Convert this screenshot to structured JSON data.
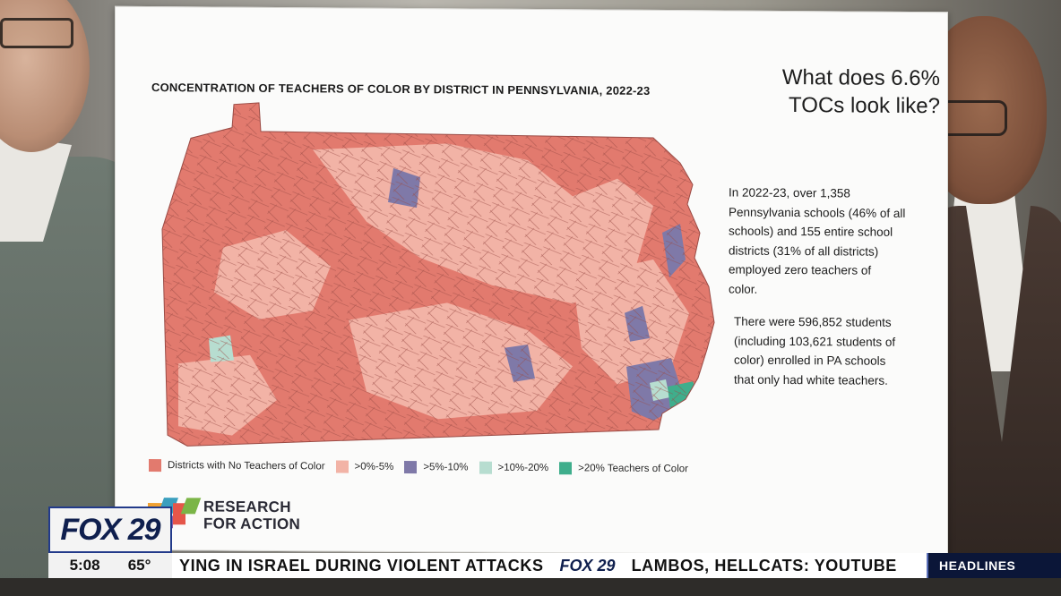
{
  "poster": {
    "map_title": "CONCENTRATION OF TEACHERS OF COLOR BY DISTRICT IN PENNSYLVANIA, 2022-23",
    "headline_line1": "What does 6.6%",
    "headline_line2": "TOCs look like?",
    "stat1_lines": [
      "In 2022-23, over 1,358",
      "Pennsylvania schools (46% of all",
      "schools) and 155 entire school",
      "districts (31% of all districts)",
      "employed zero teachers of",
      "color."
    ],
    "stat2_lines": [
      "There were 596,852 students",
      "(including 103,621 students of",
      "color) enrolled in PA schools",
      "that only had white teachers."
    ],
    "legend": [
      {
        "label": "Districts with No Teachers of Color",
        "color": "#e27a6e"
      },
      {
        "label": ">0%-5%",
        "color": "#f2b3a6"
      },
      {
        "label": ">5%-10%",
        "color": "#7f79a8"
      },
      {
        "label": ">10%-20%",
        "color": "#b7ddd0"
      },
      {
        "label": ">20% Teachers of Color",
        "color": "#3fae8c"
      }
    ],
    "logo_line1": "RESEARCH",
    "logo_line2": "FOR ACTION"
  },
  "broadcast": {
    "station": "FOX 29",
    "time": "5:08",
    "temperature": "65°",
    "crawl_left": "YING IN ISRAEL DURING VIOLENT ATTACKS",
    "crawl_logo": "FOX 29",
    "crawl_right": "LAMBOS, HELLCATS: YOUTUBE",
    "section": "HEADLINES"
  }
}
